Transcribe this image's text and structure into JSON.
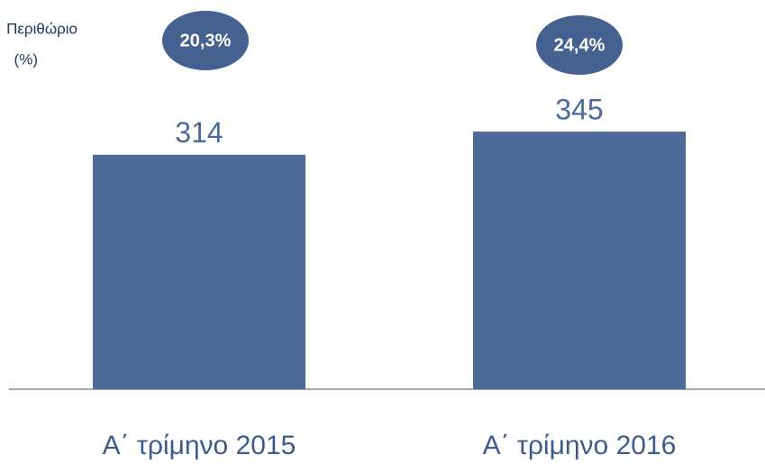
{
  "chart_data": {
    "type": "bar",
    "categories": [
      "Α΄ τρίμηνο 2015",
      "Α΄ τρίμηνο 2016"
    ],
    "values": [
      314,
      345
    ],
    "color": "#4b6a98",
    "ylim": [
      0,
      520
    ],
    "margin_title": [
      "Περιθώριο",
      "(%)"
    ],
    "margins": [
      20.3,
      24.4
    ],
    "margin_labels": [
      "20,3%",
      "24,4%"
    ],
    "margin_color": "#44618f"
  }
}
